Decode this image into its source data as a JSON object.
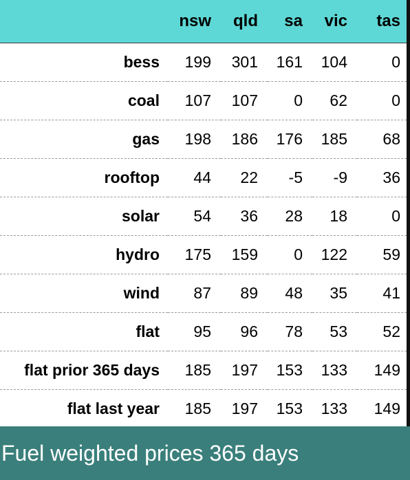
{
  "colors": {
    "header_background": "#5dd8d6",
    "caption_background": "#3a7f7b",
    "caption_text": "#ffffff"
  },
  "caption": {
    "text": "Fuel weighted prices 365 days"
  },
  "chart_data": {
    "type": "table",
    "title": "Fuel weighted prices 365 days",
    "columns": [
      "nsw",
      "qld",
      "sa",
      "vic",
      "tas"
    ],
    "rows": [
      {
        "label": "bess",
        "values": [
          199,
          301,
          161,
          104,
          0
        ]
      },
      {
        "label": "coal",
        "values": [
          107,
          107,
          0,
          62,
          0
        ]
      },
      {
        "label": "gas",
        "values": [
          198,
          186,
          176,
          185,
          68
        ]
      },
      {
        "label": "rooftop",
        "values": [
          44,
          22,
          -5,
          -9,
          36
        ]
      },
      {
        "label": "solar",
        "values": [
          54,
          36,
          28,
          18,
          0
        ]
      },
      {
        "label": "hydro",
        "values": [
          175,
          159,
          0,
          122,
          59
        ]
      },
      {
        "label": "wind",
        "values": [
          87,
          89,
          48,
          35,
          41
        ]
      },
      {
        "label": "flat",
        "values": [
          95,
          96,
          78,
          53,
          52
        ]
      },
      {
        "label": "flat prior 365 days",
        "values": [
          185,
          197,
          153,
          133,
          149
        ]
      },
      {
        "label": "flat last year",
        "values": [
          185,
          197,
          153,
          133,
          149
        ]
      }
    ]
  }
}
